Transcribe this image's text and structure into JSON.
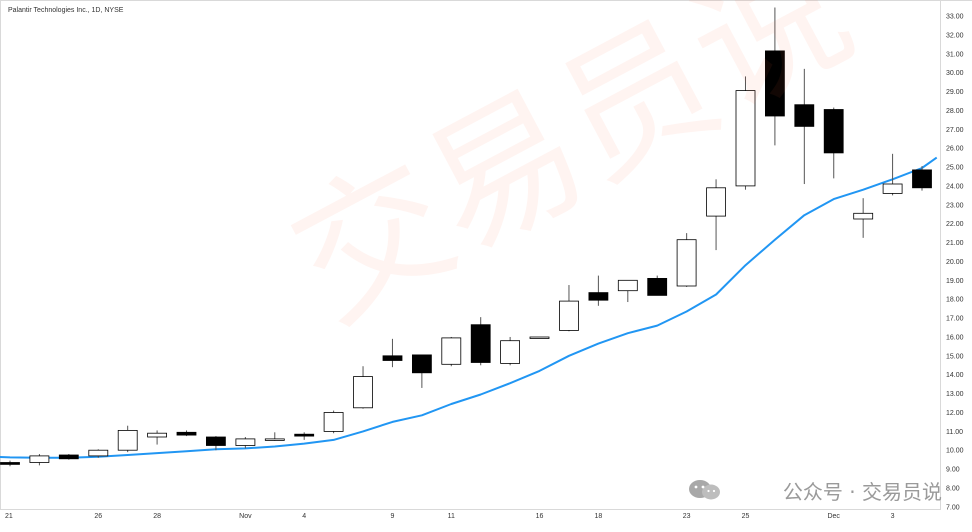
{
  "chart_data": {
    "type": "candlestick",
    "title": "Palantir Technologies Inc., 1D, NYSE",
    "xlabel": "",
    "ylabel": "",
    "ylim": [
      7.0,
      33.8
    ],
    "y_ticks": [
      "33.00",
      "32.00",
      "31.00",
      "30.00",
      "29.00",
      "28.00",
      "27.00",
      "26.00",
      "25.00",
      "24.00",
      "23.00",
      "22.00",
      "21.00",
      "20.00",
      "19.00",
      "18.00",
      "17.00",
      "16.00",
      "15.00",
      "14.00",
      "13.00",
      "12.00",
      "11.00",
      "10.00",
      "9.00",
      "8.00",
      "7.00"
    ],
    "x_ticks": [
      {
        "label": "21",
        "index": 0
      },
      {
        "label": "26",
        "index": 3
      },
      {
        "label": "28",
        "index": 5
      },
      {
        "label": "Nov",
        "index": 8
      },
      {
        "label": "4",
        "index": 10
      },
      {
        "label": "9",
        "index": 13
      },
      {
        "label": "11",
        "index": 15
      },
      {
        "label": "16",
        "index": 18
      },
      {
        "label": "18",
        "index": 20
      },
      {
        "label": "23",
        "index": 23
      },
      {
        "label": "25",
        "index": 25
      },
      {
        "label": "Dec",
        "index": 28
      },
      {
        "label": "3",
        "index": 30
      }
    ],
    "candles": [
      {
        "o": 9.35,
        "h": 9.45,
        "l": 9.15,
        "c": 9.25
      },
      {
        "o": 9.35,
        "h": 9.8,
        "l": 9.2,
        "c": 9.7
      },
      {
        "o": 9.75,
        "h": 9.8,
        "l": 9.5,
        "c": 9.55
      },
      {
        "o": 9.7,
        "h": 10.05,
        "l": 9.6,
        "c": 10.0
      },
      {
        "o": 10.0,
        "h": 11.3,
        "l": 9.9,
        "c": 11.05
      },
      {
        "o": 10.7,
        "h": 11.05,
        "l": 10.3,
        "c": 10.9
      },
      {
        "o": 10.95,
        "h": 11.05,
        "l": 10.75,
        "c": 10.8
      },
      {
        "o": 10.7,
        "h": 10.75,
        "l": 10.0,
        "c": 10.25
      },
      {
        "o": 10.25,
        "h": 10.7,
        "l": 10.1,
        "c": 10.6
      },
      {
        "o": 10.6,
        "h": 10.95,
        "l": 10.5,
        "c": 10.6
      },
      {
        "o": 10.85,
        "h": 10.95,
        "l": 10.55,
        "c": 10.75
      },
      {
        "o": 11.0,
        "h": 12.1,
        "l": 10.9,
        "c": 12.0
      },
      {
        "o": 12.25,
        "h": 14.45,
        "l": 12.2,
        "c": 13.9
      },
      {
        "o": 15.0,
        "h": 15.9,
        "l": 14.4,
        "c": 14.75
      },
      {
        "o": 15.05,
        "h": 15.05,
        "l": 13.3,
        "c": 14.1
      },
      {
        "o": 14.55,
        "h": 16.0,
        "l": 14.45,
        "c": 15.95
      },
      {
        "o": 16.65,
        "h": 17.05,
        "l": 14.5,
        "c": 14.65
      },
      {
        "o": 14.6,
        "h": 16.0,
        "l": 14.5,
        "c": 15.8
      },
      {
        "o": 16.0,
        "h": 16.0,
        "l": 15.95,
        "c": 16.0
      },
      {
        "o": 16.35,
        "h": 18.75,
        "l": 16.3,
        "c": 17.9
      },
      {
        "o": 18.35,
        "h": 19.25,
        "l": 17.65,
        "c": 17.95
      },
      {
        "o": 18.45,
        "h": 19.0,
        "l": 17.85,
        "c": 19.0
      },
      {
        "o": 19.1,
        "h": 19.25,
        "l": 18.2,
        "c": 18.2
      },
      {
        "o": 18.7,
        "h": 21.5,
        "l": 18.65,
        "c": 21.15
      },
      {
        "o": 22.4,
        "h": 24.35,
        "l": 20.6,
        "c": 23.9
      },
      {
        "o": 24.0,
        "h": 29.8,
        "l": 23.8,
        "c": 29.05
      },
      {
        "o": 31.15,
        "h": 33.45,
        "l": 26.15,
        "c": 27.7
      },
      {
        "o": 28.3,
        "h": 30.2,
        "l": 24.1,
        "c": 27.15
      },
      {
        "o": 28.05,
        "h": 28.15,
        "l": 24.4,
        "c": 25.75
      },
      {
        "o": 22.25,
        "h": 23.35,
        "l": 21.25,
        "c": 22.55
      },
      {
        "o": 23.6,
        "h": 25.7,
        "l": 23.5,
        "c": 24.1
      },
      {
        "o": 24.85,
        "h": 25.05,
        "l": 23.75,
        "c": 23.9
      }
    ],
    "moving_average": {
      "color": "#2196f3",
      "x": [
        -0.5,
        0,
        1,
        2,
        3,
        4,
        5,
        6,
        7,
        8,
        9,
        10,
        11,
        12,
        13,
        14,
        15,
        16,
        17,
        18,
        19,
        20,
        21,
        22,
        23,
        24,
        25,
        26,
        27,
        28,
        29,
        30,
        31,
        31.5
      ],
      "values": [
        9.65,
        9.62,
        9.6,
        9.6,
        9.65,
        9.75,
        9.85,
        9.95,
        10.05,
        10.1,
        10.2,
        10.35,
        10.55,
        11.0,
        11.5,
        11.85,
        12.45,
        12.95,
        13.55,
        14.2,
        15.0,
        15.65,
        16.2,
        16.6,
        17.35,
        18.25,
        19.8,
        21.15,
        22.45,
        23.3,
        23.8,
        24.35,
        24.95,
        25.5
      ]
    },
    "grid": false,
    "legend": "none",
    "up_fill": "#ffffff",
    "down_fill": "#000000",
    "candle_stroke": "#000000"
  },
  "watermark": {
    "channel_text": "公众号 · 交易员说",
    "overlay_text": "交易员说"
  }
}
